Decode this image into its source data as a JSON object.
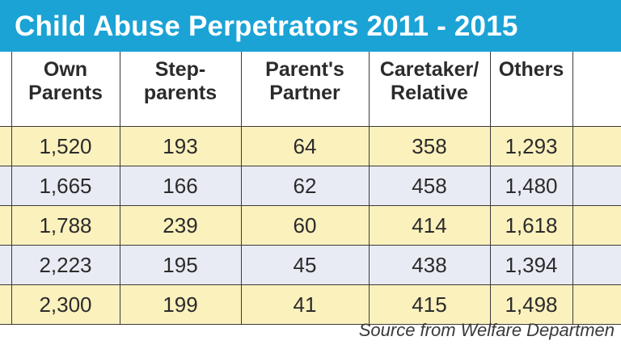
{
  "title": "Child Abuse Perpetrators 2011 - 2015",
  "source": "Source from Welfare Departmen",
  "colors": {
    "title_bar": "#1ba3d6",
    "row_yellow": "#fbf1bd",
    "row_gray": "#e9ebf4"
  },
  "chart_data": {
    "type": "table",
    "title": "Child Abuse Perpetrators 2011 - 2015",
    "columns": [
      "Own Parents",
      "Step-parents",
      "Parent's Partner",
      "Caretaker/ Relative",
      "Others"
    ],
    "header_lines": [
      [
        "Own",
        "Parents"
      ],
      [
        "Step-",
        "parents"
      ],
      [
        "Parent's",
        "Partner"
      ],
      [
        "Caretaker/",
        "Relative"
      ],
      [
        "Others",
        ""
      ]
    ],
    "rows": [
      [
        "1,520",
        "193",
        "64",
        "358",
        "1,293"
      ],
      [
        "1,665",
        "166",
        "62",
        "458",
        "1,480"
      ],
      [
        "1,788",
        "239",
        "60",
        "414",
        "1,618"
      ],
      [
        "2,223",
        "195",
        "45",
        "438",
        "1,394"
      ],
      [
        "2,300",
        "199",
        "41",
        "415",
        "1,498"
      ]
    ]
  }
}
